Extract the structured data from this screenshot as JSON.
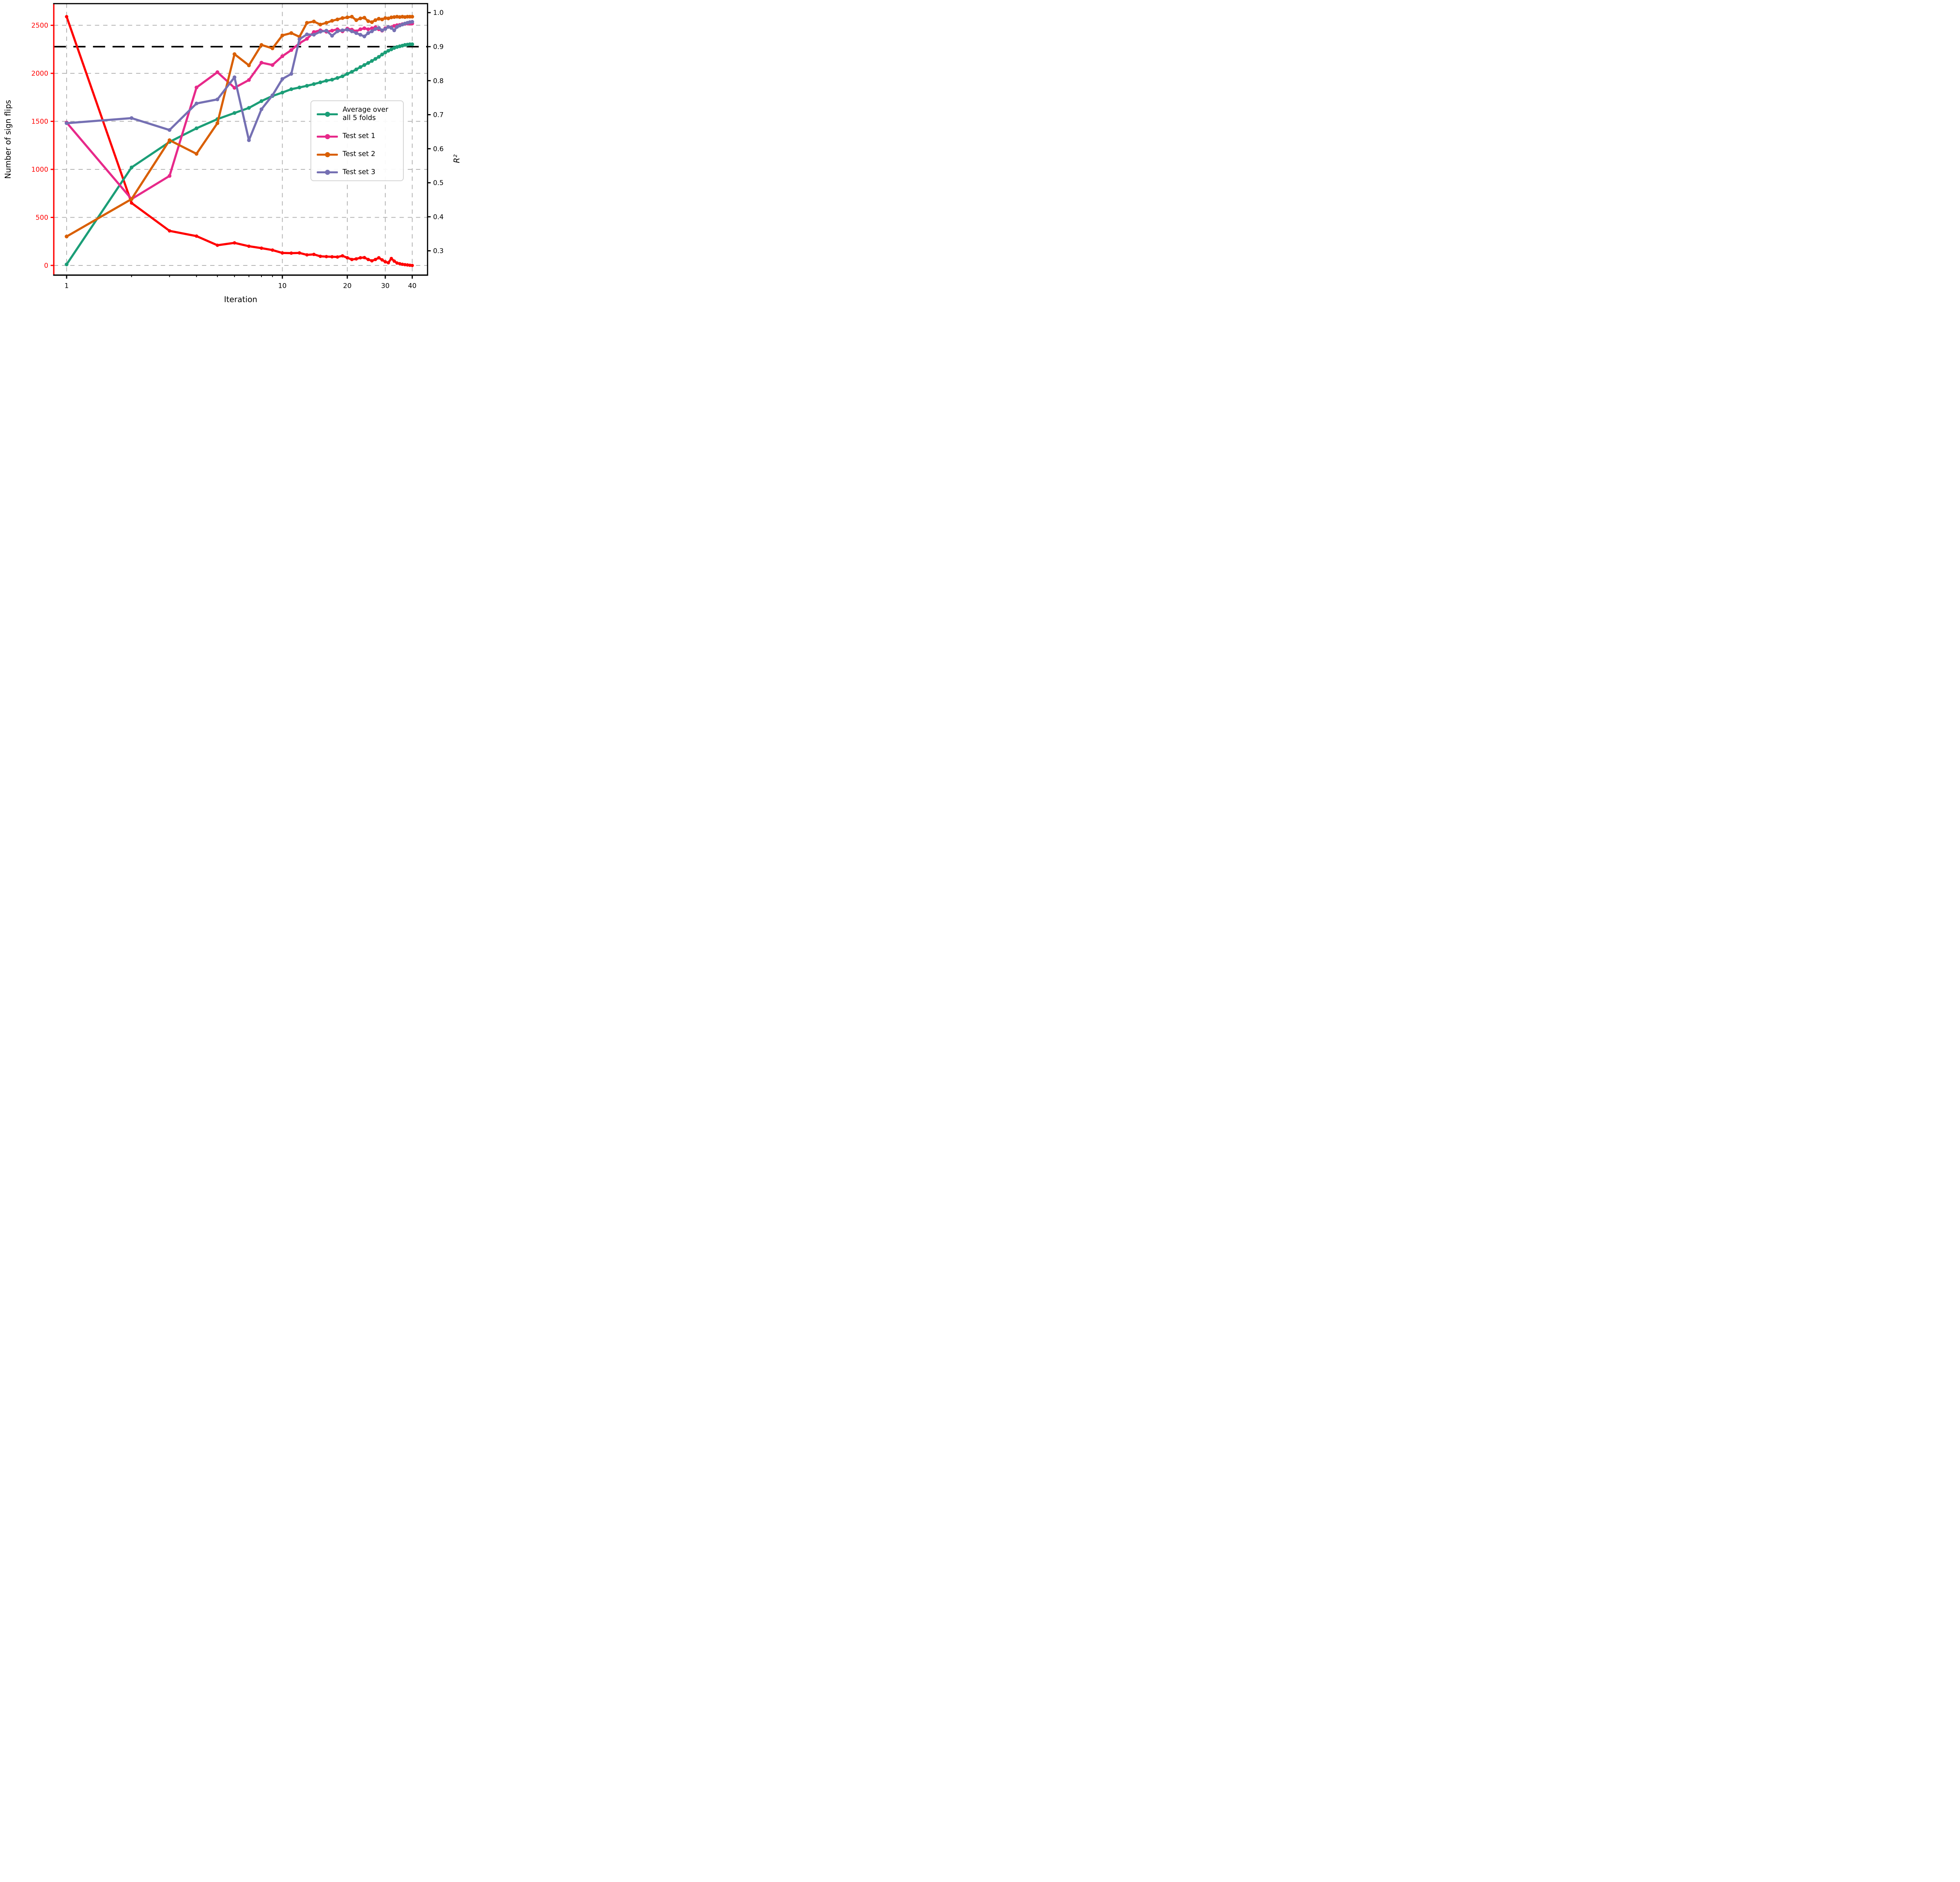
{
  "chart_data": {
    "type": "line",
    "title": "",
    "xlabel": "Iteration",
    "ylabel_left": "Number of sign flips",
    "ylabel_right": "R²",
    "x_scale": "log",
    "xlim": [
      0.872,
      47.1
    ],
    "ylim_left": [
      -101,
      2726
    ],
    "ylim_right": [
      0.2285,
      1.0265
    ],
    "x_major_ticks": [
      1,
      10,
      20,
      30,
      40
    ],
    "x_minor_ticks": [
      2,
      3,
      4,
      5,
      6,
      7,
      8,
      9
    ],
    "y_ticks_left": [
      0,
      500,
      1000,
      1500,
      2000,
      2500
    ],
    "y_ticks_right": [
      0.3,
      0.4,
      0.5,
      0.6,
      0.7,
      0.8,
      0.9,
      1.0
    ],
    "grid": true,
    "target_line": {
      "axis": "right",
      "value": 0.9,
      "color": "#000000",
      "style": "dashed"
    },
    "x": [
      1,
      2,
      3,
      4,
      5,
      6,
      7,
      8,
      9,
      10,
      11,
      12,
      13,
      14,
      15,
      16,
      17,
      18,
      19,
      20,
      21,
      22,
      23,
      24,
      25,
      26,
      27,
      28,
      29,
      30,
      31,
      32,
      33,
      34,
      35,
      36,
      37,
      38,
      39,
      40
    ],
    "series": [
      {
        "name": "Number of sign flips",
        "axis": "left",
        "color": "#ff0000",
        "in_legend": false,
        "values": [
          2590,
          650,
          360,
          305,
          210,
          235,
          200,
          180,
          160,
          130,
          128,
          130,
          110,
          115,
          95,
          92,
          90,
          88,
          100,
          80,
          62,
          68,
          80,
          82,
          62,
          48,
          62,
          80,
          58,
          38,
          28,
          72,
          45,
          25,
          18,
          12,
          8,
          5,
          2,
          0
        ]
      },
      {
        "name": "Average over\nall 5 folds",
        "axis": "right",
        "color": "#1b9e77",
        "in_legend": true,
        "values": [
          0.26,
          0.545,
          0.62,
          0.66,
          0.687,
          0.705,
          0.72,
          0.74,
          0.755,
          0.765,
          0.775,
          0.78,
          0.785,
          0.79,
          0.795,
          0.8,
          0.803,
          0.808,
          0.813,
          0.82,
          0.826,
          0.833,
          0.84,
          0.846,
          0.852,
          0.858,
          0.864,
          0.87,
          0.877,
          0.883,
          0.888,
          0.892,
          0.896,
          0.899,
          0.901,
          0.903,
          0.905,
          0.906,
          0.907,
          0.907
        ]
      },
      {
        "name": "Test set 1",
        "axis": "right",
        "color": "#e7298a",
        "in_legend": true,
        "values": [
          0.677,
          0.452,
          0.52,
          0.78,
          0.825,
          0.779,
          0.802,
          0.853,
          0.846,
          0.872,
          0.89,
          0.91,
          0.923,
          0.943,
          0.948,
          0.944,
          0.947,
          0.951,
          0.945,
          0.953,
          0.95,
          0.945,
          0.951,
          0.954,
          0.951,
          0.954,
          0.957,
          0.951,
          0.947,
          0.954,
          0.958,
          0.957,
          0.961,
          0.963,
          0.964,
          0.966,
          0.967,
          0.968,
          0.968,
          0.968
        ]
      },
      {
        "name": "Test set 2",
        "axis": "right",
        "color": "#d95f02",
        "in_legend": true,
        "values": [
          0.342,
          0.452,
          0.625,
          0.585,
          0.675,
          0.878,
          0.845,
          0.905,
          0.895,
          0.933,
          0.94,
          0.929,
          0.97,
          0.974,
          0.965,
          0.97,
          0.976,
          0.98,
          0.984,
          0.986,
          0.988,
          0.978,
          0.983,
          0.985,
          0.975,
          0.972,
          0.978,
          0.982,
          0.98,
          0.984,
          0.983,
          0.986,
          0.987,
          0.988,
          0.987,
          0.988,
          0.987,
          0.988,
          0.988,
          0.988
        ]
      },
      {
        "name": "Test set 3",
        "axis": "right",
        "color": "#7570b3",
        "in_legend": true,
        "values": [
          0.675,
          0.69,
          0.655,
          0.733,
          0.745,
          0.81,
          0.625,
          0.716,
          0.757,
          0.805,
          0.82,
          0.922,
          0.936,
          0.935,
          0.944,
          0.947,
          0.932,
          0.945,
          0.948,
          0.95,
          0.945,
          0.94,
          0.935,
          0.93,
          0.94,
          0.945,
          0.952,
          0.955,
          0.948,
          0.952,
          0.958,
          0.955,
          0.948,
          0.958,
          0.962,
          0.965,
          0.968,
          0.97,
          0.972,
          0.973
        ]
      }
    ],
    "legend_position": "center right",
    "colors": {
      "left_axis": "#ff0000",
      "right_axis": "#000000",
      "grid": "#b3b3b3",
      "background": "#ffffff"
    }
  }
}
